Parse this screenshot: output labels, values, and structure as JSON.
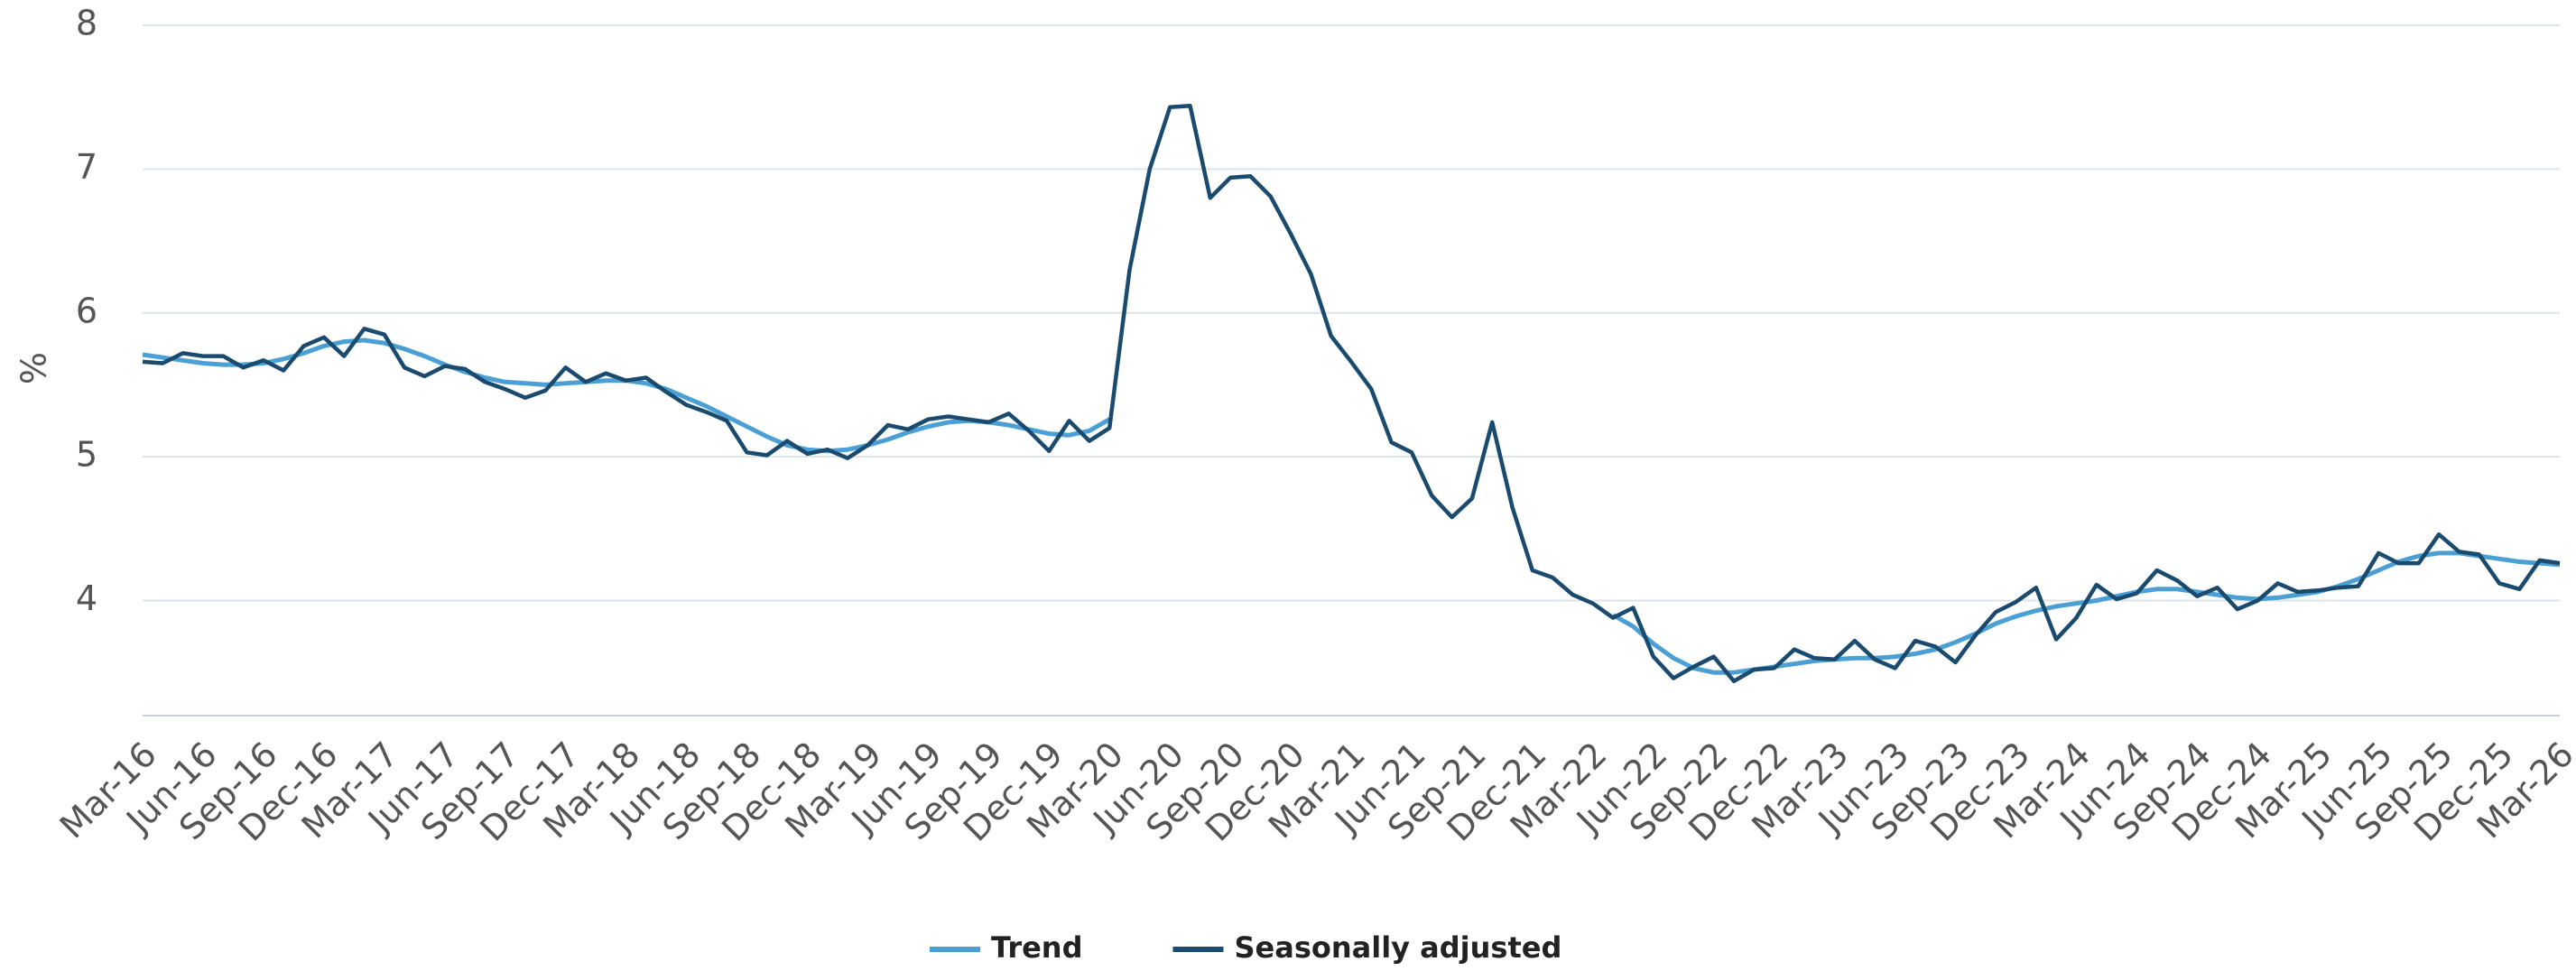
{
  "chart_data": {
    "type": "line",
    "y_label": "%",
    "categories": [
      "Mar-16",
      null,
      null,
      "Jun-16",
      null,
      null,
      "Sep-16",
      null,
      null,
      "Dec-16",
      null,
      null,
      "Mar-17",
      null,
      null,
      "Jun-17",
      null,
      null,
      "Sep-17",
      null,
      null,
      "Dec-17",
      null,
      null,
      "Mar-18",
      null,
      null,
      "Jun-18",
      null,
      null,
      "Sep-18",
      null,
      null,
      "Dec-18",
      null,
      null,
      "Mar-19",
      null,
      null,
      "Jun-19",
      null,
      null,
      "Sep-19",
      null,
      null,
      "Dec-19",
      null,
      null,
      "Mar-20",
      null,
      null,
      "Jun-20",
      null,
      null,
      "Sep-20",
      null,
      null,
      "Dec-20",
      null,
      null,
      "Mar-21",
      null,
      null,
      "Jun-21",
      null,
      null,
      "Sep-21",
      null,
      null,
      "Dec-21",
      null,
      null,
      "Mar-22",
      null,
      null,
      "Jun-22",
      null,
      null,
      "Sep-22",
      null,
      null,
      "Dec-22",
      null,
      null,
      "Mar-23",
      null,
      null,
      "Jun-23",
      null,
      null,
      "Sep-23",
      null,
      null,
      "Dec-23",
      null,
      null,
      "Mar-24",
      null,
      null,
      "Jun-24",
      null,
      null,
      "Sep-24",
      null,
      null,
      "Dec-24",
      null,
      null,
      "Mar-25",
      null,
      null,
      "Jun-25",
      null,
      null,
      "Sep-25",
      null,
      null,
      "Dec-25",
      null,
      null,
      "Mar-26"
    ],
    "series": [
      {
        "name": "Trend",
        "color": "#4a9fd4",
        "values": [
          5.71,
          5.69,
          5.67,
          5.65,
          5.64,
          5.64,
          5.65,
          5.68,
          5.72,
          5.77,
          5.8,
          5.81,
          5.79,
          5.75,
          5.7,
          5.64,
          5.59,
          5.55,
          5.52,
          5.51,
          5.5,
          5.51,
          5.52,
          5.53,
          5.53,
          5.51,
          5.47,
          5.41,
          5.35,
          5.28,
          5.21,
          5.14,
          5.08,
          5.05,
          5.04,
          5.05,
          5.08,
          5.12,
          5.17,
          5.21,
          5.24,
          5.25,
          5.24,
          5.22,
          5.19,
          5.16,
          5.15,
          5.18,
          5.26,
          null,
          null,
          null,
          null,
          null,
          null,
          null,
          null,
          null,
          null,
          null,
          null,
          null,
          null,
          null,
          null,
          null,
          null,
          null,
          null,
          null,
          null,
          null,
          null,
          3.9,
          3.82,
          3.7,
          3.6,
          3.53,
          3.5,
          3.5,
          3.52,
          3.54,
          3.56,
          3.58,
          3.59,
          3.6,
          3.6,
          3.61,
          3.63,
          3.66,
          3.71,
          3.77,
          3.84,
          3.89,
          3.93,
          3.96,
          3.98,
          4.0,
          4.03,
          4.06,
          4.08,
          4.08,
          4.06,
          4.04,
          4.02,
          4.01,
          4.02,
          4.04,
          4.06,
          4.1,
          4.15,
          4.21,
          4.27,
          4.31,
          4.33,
          4.33,
          4.31,
          4.29,
          4.27,
          4.26,
          4.25
        ]
      },
      {
        "name": "Seasonally adjusted",
        "color": "#1a4a6e",
        "values": [
          5.66,
          5.65,
          5.72,
          5.7,
          5.7,
          5.62,
          5.67,
          5.6,
          5.77,
          5.83,
          5.7,
          5.89,
          5.85,
          5.62,
          5.56,
          5.63,
          5.61,
          5.52,
          5.47,
          5.41,
          5.46,
          5.62,
          5.52,
          5.58,
          5.53,
          5.55,
          5.45,
          5.36,
          5.31,
          5.25,
          5.03,
          5.01,
          5.11,
          5.02,
          5.05,
          4.99,
          5.08,
          5.22,
          5.19,
          5.26,
          5.28,
          5.26,
          5.24,
          5.3,
          5.18,
          5.04,
          5.25,
          5.11,
          5.2,
          6.3,
          7.0,
          7.43,
          7.44,
          6.8,
          6.94,
          6.95,
          6.81,
          6.55,
          6.27,
          5.84,
          5.66,
          5.47,
          5.1,
          5.03,
          4.73,
          4.58,
          4.71,
          5.24,
          4.65,
          4.21,
          4.16,
          4.04,
          3.98,
          3.88,
          3.95,
          3.61,
          3.46,
          3.54,
          3.61,
          3.44,
          3.52,
          3.53,
          3.66,
          3.6,
          3.59,
          3.72,
          3.59,
          3.53,
          3.72,
          3.68,
          3.57,
          3.76,
          3.92,
          3.99,
          4.09,
          3.73,
          3.88,
          4.11,
          4.01,
          4.05,
          4.21,
          4.14,
          4.03,
          4.09,
          3.94,
          4.0,
          4.12,
          4.06,
          4.07,
          4.09,
          4.1,
          4.33,
          4.26,
          4.26,
          4.46,
          4.34,
          4.32,
          4.12,
          4.08,
          4.28,
          4.26
        ]
      }
    ],
    "ylim": [
      3.2,
      8
    ],
    "yticks": [
      4,
      5,
      6,
      7,
      8
    ],
    "grid": true,
    "legend": "bottom"
  }
}
